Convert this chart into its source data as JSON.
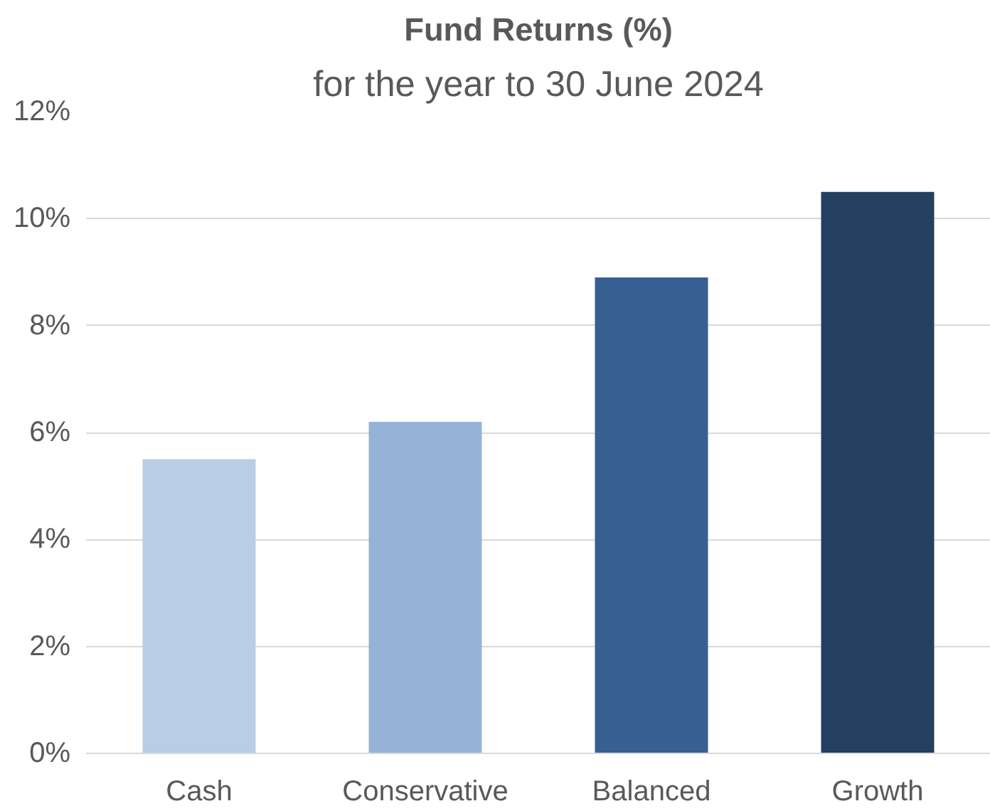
{
  "chart_data": {
    "type": "bar",
    "title": "Fund Returns (%)",
    "subtitle": "for the year to 30 June 2024",
    "categories": [
      "Cash",
      "Conservative",
      "Balanced",
      "Growth"
    ],
    "values": [
      5.5,
      6.2,
      8.9,
      10.5
    ],
    "colors": [
      "#b9cde5",
      "#95b3d7",
      "#376092",
      "#243f60"
    ],
    "ylim": [
      0,
      12
    ],
    "yticks": [
      {
        "value": 0,
        "label": "0%"
      },
      {
        "value": 2,
        "label": "2%"
      },
      {
        "value": 4,
        "label": "4%"
      },
      {
        "value": 6,
        "label": "6%"
      },
      {
        "value": 8,
        "label": "8%"
      },
      {
        "value": 10,
        "label": "10%"
      },
      {
        "value": 12,
        "label": "12%"
      }
    ],
    "grid": "y"
  }
}
